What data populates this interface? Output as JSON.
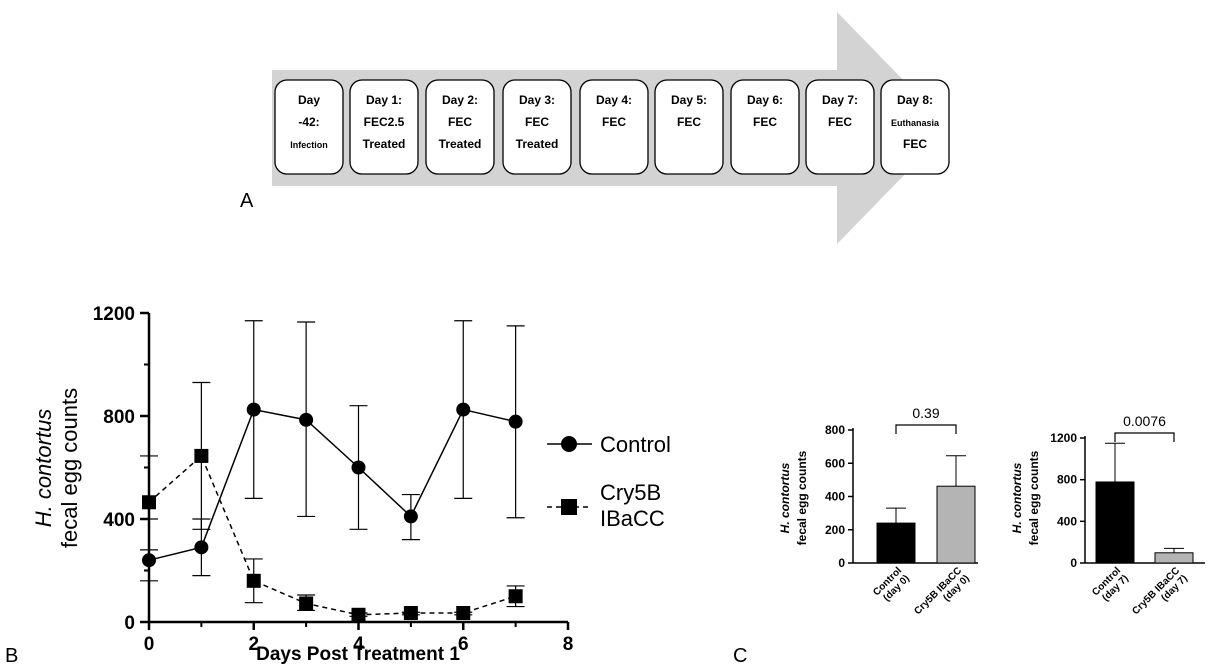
{
  "timeline": {
    "panel_label": "A",
    "steps": [
      [
        "Day",
        "-42:",
        "Infection"
      ],
      [
        "Day 1:",
        "FEC2.5",
        "Treated"
      ],
      [
        "Day 2:",
        "FEC",
        "Treated"
      ],
      [
        "Day 3:",
        "FEC",
        "Treated"
      ],
      [
        "Day 4:",
        "FEC"
      ],
      [
        "Day 5:",
        "FEC"
      ],
      [
        "Day 6:",
        "FEC"
      ],
      [
        "Day 7:",
        "FEC"
      ],
      [
        "Day 8:",
        "Euthanasia",
        "FEC"
      ]
    ],
    "colors": {
      "arrow": "#d3d3d3",
      "box_fill": "#ffffff",
      "box_stroke": "#000000"
    }
  },
  "chart_data": [
    {
      "panel_label": "B",
      "type": "line",
      "xlabel": "Days Post Treatment 1",
      "ylabel_italic": "H. contortus",
      "ylabel": "fecal egg counts",
      "xlim": [
        0,
        8
      ],
      "ylim": [
        0,
        1200
      ],
      "xticks": [
        0,
        2,
        4,
        6,
        8
      ],
      "yticks": [
        0,
        400,
        800,
        1200
      ],
      "legend_position": "right",
      "series": [
        {
          "name": "Control",
          "marker": "circle",
          "line": "solid",
          "x": [
            0,
            1,
            2,
            3,
            4,
            5,
            6,
            7
          ],
          "y": [
            240,
            290,
            825,
            785,
            600,
            410,
            825,
            778
          ],
          "err_upper": [
            400,
            400,
            1170,
            1165,
            840,
            495,
            1170,
            1150
          ],
          "err_lower": [
            160,
            180,
            480,
            410,
            360,
            320,
            480,
            405
          ]
        },
        {
          "name": "Cry5B\nIBaCC",
          "marker": "square",
          "line": "dashed",
          "x": [
            0,
            1,
            2,
            3,
            4,
            5,
            6,
            7
          ],
          "y": [
            465,
            645,
            160,
            72,
            28,
            35,
            35,
            100
          ],
          "err_upper": [
            645,
            930,
            245,
            105,
            35,
            38,
            38,
            140
          ],
          "err_lower": [
            280,
            360,
            75,
            45,
            22,
            28,
            28,
            60
          ]
        }
      ]
    },
    {
      "panel_label": "C",
      "type": "bar",
      "ylabel_italic": "H. contortus",
      "ylabel": "fecal egg counts",
      "ylim": [
        0,
        800
      ],
      "yticks": [
        0,
        200,
        400,
        600,
        800
      ],
      "categories": [
        "Control\n(day 0)",
        "Cry5B IBaCC\n(day 0)"
      ],
      "values": [
        240,
        462
      ],
      "err_upper": [
        330,
        645
      ],
      "bar_colors": [
        "#000000",
        "#b4b4b4"
      ],
      "comparison_label": "0.39"
    },
    {
      "type": "bar",
      "ylabel_italic": "H. contortus",
      "ylabel": "fecal egg counts",
      "ylim": [
        0,
        1200
      ],
      "yticks": [
        0,
        400,
        800,
        1200
      ],
      "categories": [
        "Control\n(day 7)",
        "Cry5B IBaCC\n(day 7)"
      ],
      "values": [
        778,
        98
      ],
      "err_upper": [
        1150,
        140
      ],
      "bar_colors": [
        "#000000",
        "#b4b4b4"
      ],
      "comparison_label": "0.0076"
    }
  ]
}
